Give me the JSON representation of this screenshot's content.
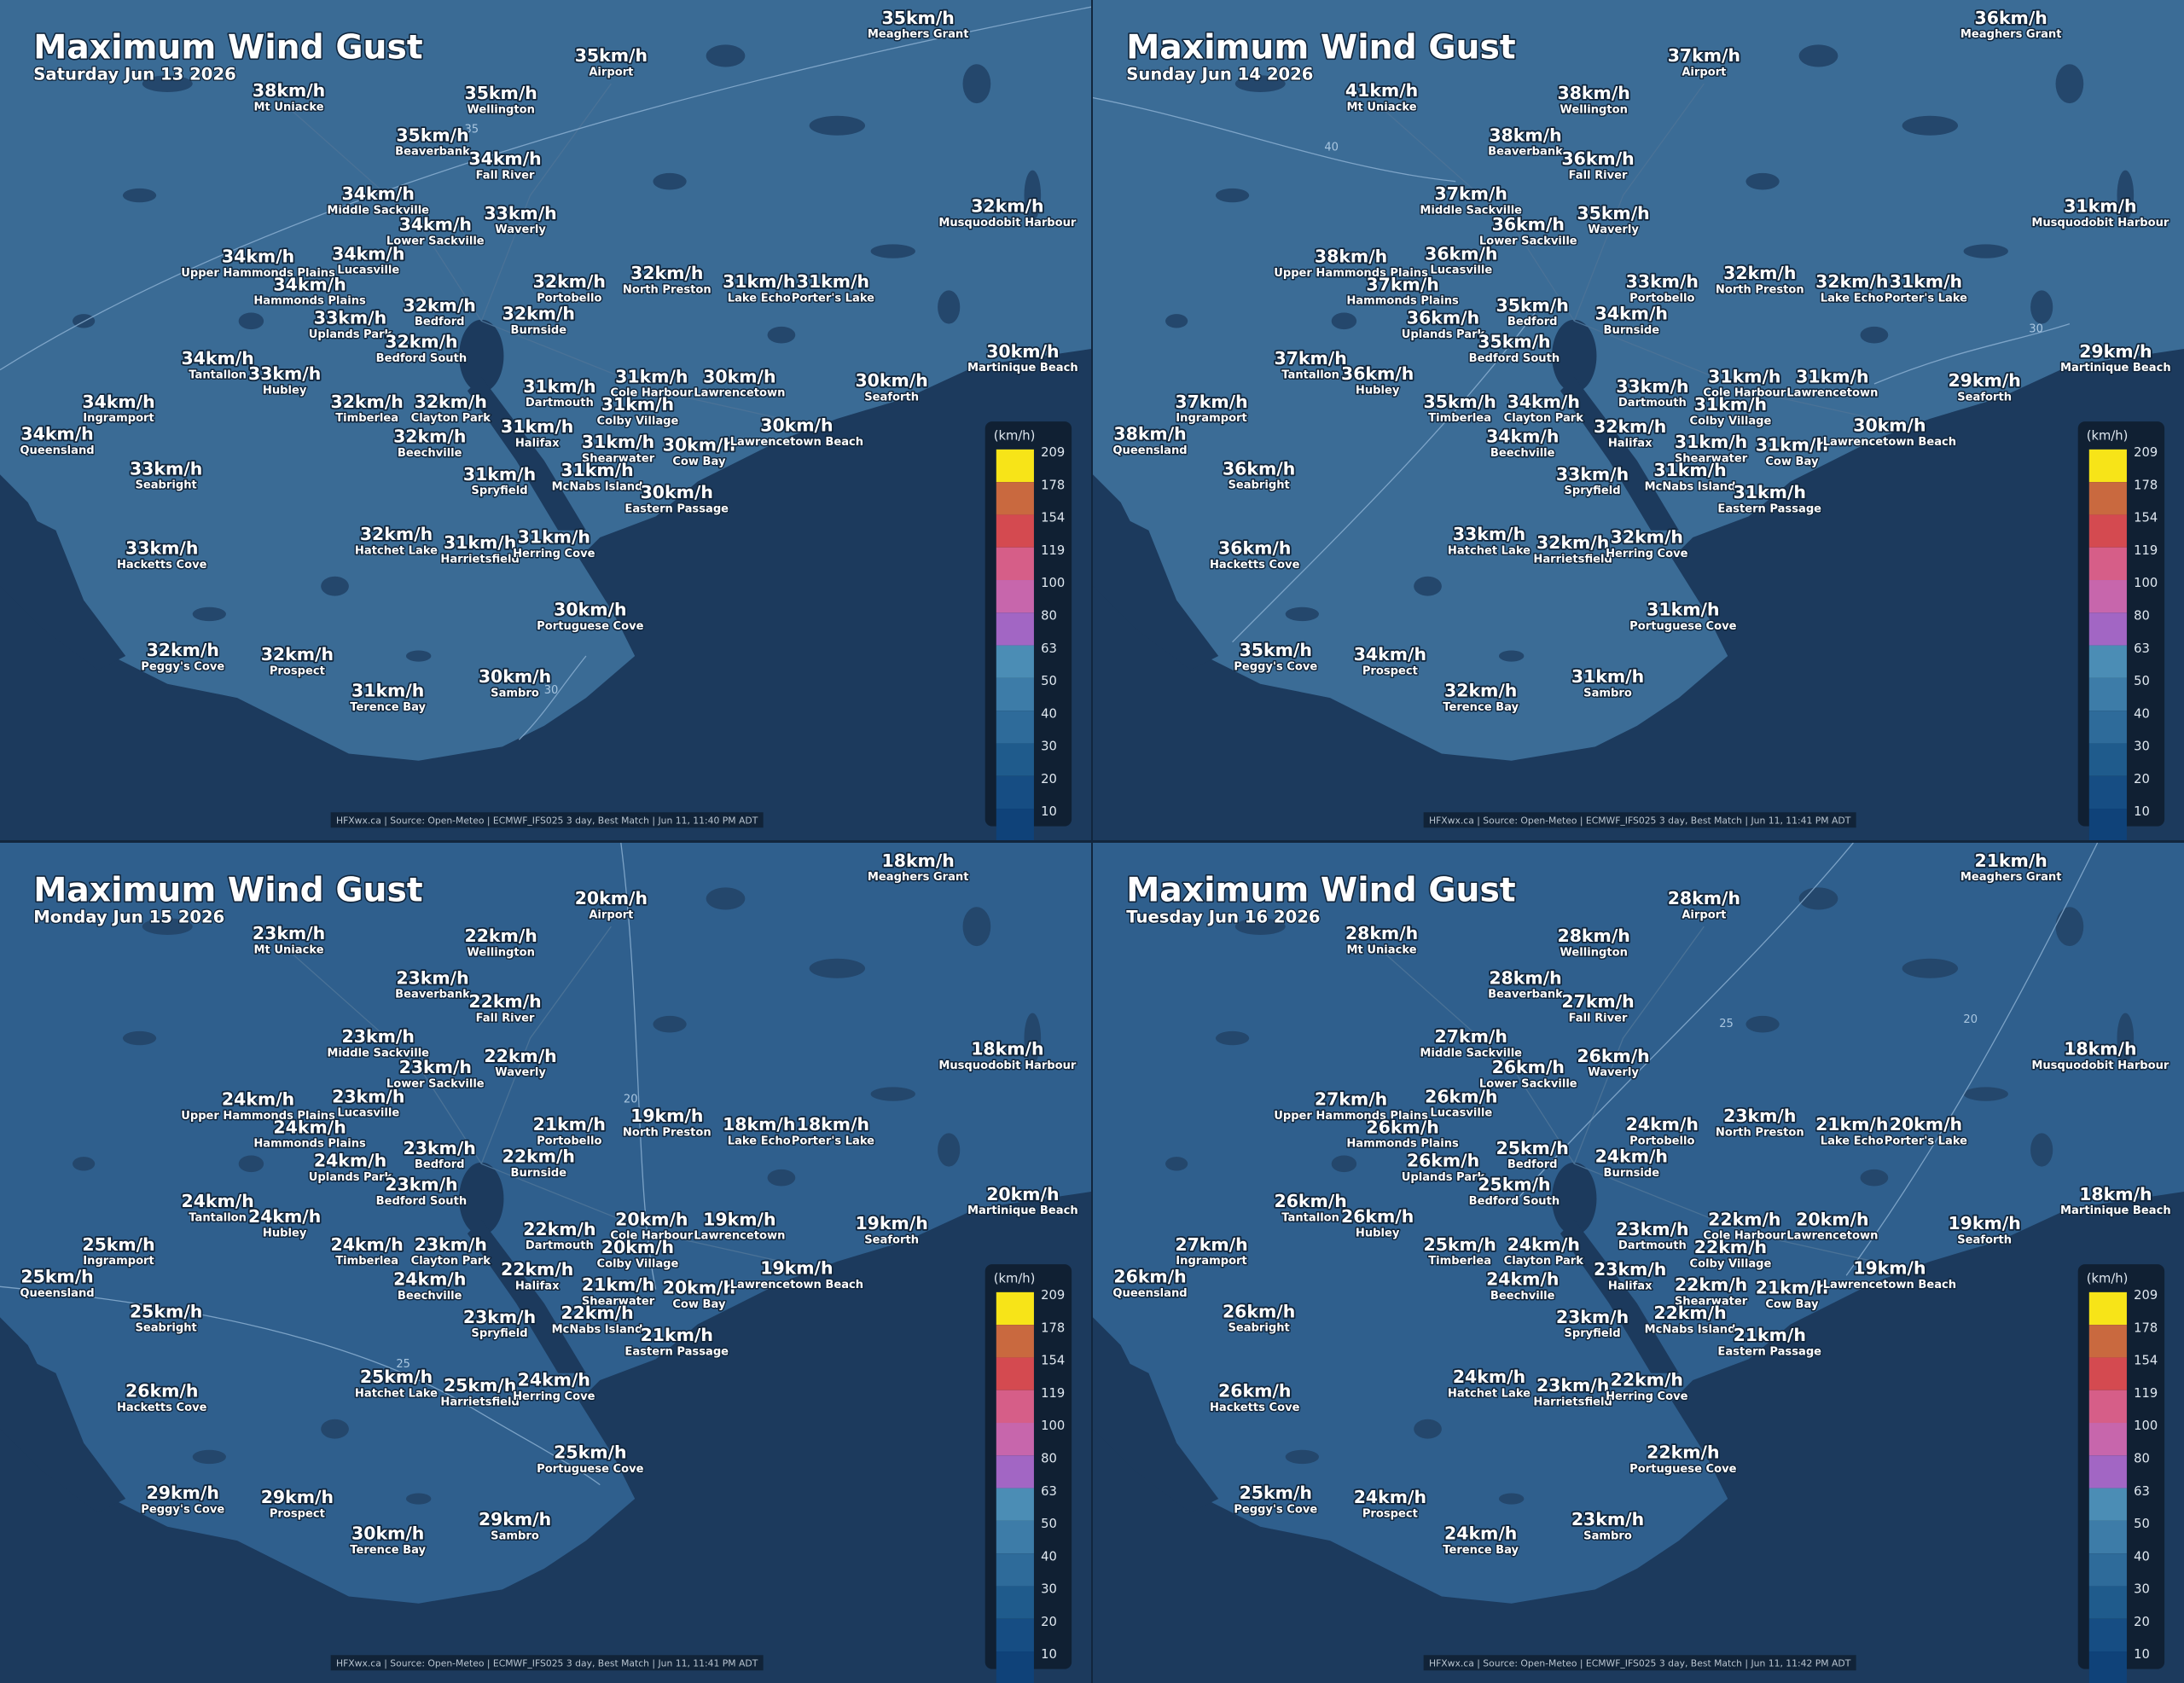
{
  "places": [
    "Meaghers Grant",
    "Airport",
    "Mt Uniacke",
    "Wellington",
    "Beaverbank",
    "Fall River",
    "Musquodobit Harbour",
    "Middle Sackville",
    "Lower Sackville",
    "Waverly",
    "Upper Hammonds Plains",
    "Lucasville",
    "Hammonds Plains",
    "Portobello",
    "North Preston",
    "Lake Echo",
    "Porter's Lake",
    "Bedford",
    "Uplands Park",
    "Burnside",
    "Bedford South",
    "Martinique Beach",
    "Tantallon",
    "Hubley",
    "Cole Harbour",
    "Lawrencetown",
    "Seaforth",
    "Ingramport",
    "Timberlea",
    "Clayton Park",
    "Dartmouth",
    "Colby Village",
    "Queensland",
    "Halifax",
    "Shearwater",
    "Beechville",
    "Cow Bay",
    "Lawrencetown Beach",
    "McNabs Island",
    "Seabright",
    "Spryfield",
    "Eastern Passage",
    "Hatchet Lake",
    "Harrietsfield",
    "Herring Cove",
    "Hacketts Cove",
    "Portuguese Cove",
    "Peggy's Cove",
    "Prospect",
    "Terence Bay",
    "Sambro"
  ],
  "legend": {
    "unit": "(km/h)",
    "ticks": [
      209,
      178,
      154,
      119,
      100,
      80,
      63,
      50,
      40,
      30,
      20,
      10
    ],
    "colors": [
      "#f7e418",
      "#c9693f",
      "#d44a50",
      "#d65e88",
      "#c766ac",
      "#a266c4",
      "#4b8db5",
      "#3d7ca8",
      "#2e6b9a",
      "#1f5b8c",
      "#164d83",
      "#0f4279"
    ]
  },
  "panels": [
    {
      "title": "Maximum Wind Gust",
      "date": "Saturday Jun 13 2026",
      "footer": "HFXwx.ca | Source: Open-Meteo | ECMWF_IFS025 3 day, Best Match | Jun 11, 11:40 PM ADT",
      "contours": [
        "35",
        "30"
      ],
      "gusts": [
        "35km/h",
        "35km/h",
        "38km/h",
        "35km/h",
        "35km/h",
        "34km/h",
        "32km/h",
        "34km/h",
        "34km/h",
        "33km/h",
        "34km/h",
        "34km/h",
        "34km/h",
        "32km/h",
        "32km/h",
        "31km/h",
        "31km/h",
        "32km/h",
        "33km/h",
        "32km/h",
        "32km/h",
        "30km/h",
        "34km/h",
        "33km/h",
        "31km/h",
        "30km/h",
        "30km/h",
        "34km/h",
        "32km/h",
        "32km/h",
        "31km/h",
        "31km/h",
        "34km/h",
        "31km/h",
        "31km/h",
        "32km/h",
        "30km/h",
        "30km/h",
        "31km/h",
        "33km/h",
        "31km/h",
        "30km/h",
        "32km/h",
        "31km/h",
        "31km/h",
        "33km/h",
        "30km/h",
        "32km/h",
        "32km/h",
        "31km/h",
        "30km/h"
      ]
    },
    {
      "title": "Maximum Wind Gust",
      "date": "Sunday Jun 14 2026",
      "footer": "HFXwx.ca | Source: Open-Meteo | ECMWF_IFS025 3 day, Best Match | Jun 11, 11:41 PM ADT",
      "contours": [
        "40",
        "30"
      ],
      "gusts": [
        "36km/h",
        "37km/h",
        "41km/h",
        "38km/h",
        "38km/h",
        "36km/h",
        "31km/h",
        "37km/h",
        "36km/h",
        "35km/h",
        "38km/h",
        "36km/h",
        "37km/h",
        "33km/h",
        "32km/h",
        "32km/h",
        "31km/h",
        "35km/h",
        "36km/h",
        "34km/h",
        "35km/h",
        "29km/h",
        "37km/h",
        "36km/h",
        "31km/h",
        "31km/h",
        "29km/h",
        "37km/h",
        "35km/h",
        "34km/h",
        "33km/h",
        "31km/h",
        "38km/h",
        "32km/h",
        "31km/h",
        "34km/h",
        "31km/h",
        "30km/h",
        "31km/h",
        "36km/h",
        "33km/h",
        "31km/h",
        "33km/h",
        "32km/h",
        "32km/h",
        "36km/h",
        "31km/h",
        "35km/h",
        "34km/h",
        "32km/h",
        "31km/h"
      ]
    },
    {
      "title": "Maximum Wind Gust",
      "date": "Monday Jun 15 2026",
      "footer": "HFXwx.ca | Source: Open-Meteo | ECMWF_IFS025 3 day, Best Match | Jun 11, 11:41 PM ADT",
      "contours": [
        "20",
        "25"
      ],
      "gusts": [
        "18km/h",
        "20km/h",
        "23km/h",
        "22km/h",
        "23km/h",
        "22km/h",
        "18km/h",
        "23km/h",
        "23km/h",
        "22km/h",
        "24km/h",
        "23km/h",
        "24km/h",
        "21km/h",
        "19km/h",
        "18km/h",
        "18km/h",
        "23km/h",
        "24km/h",
        "22km/h",
        "23km/h",
        "20km/h",
        "24km/h",
        "24km/h",
        "20km/h",
        "19km/h",
        "19km/h",
        "25km/h",
        "24km/h",
        "23km/h",
        "22km/h",
        "20km/h",
        "25km/h",
        "22km/h",
        "21km/h",
        "24km/h",
        "20km/h",
        "19km/h",
        "22km/h",
        "25km/h",
        "23km/h",
        "21km/h",
        "25km/h",
        "25km/h",
        "24km/h",
        "26km/h",
        "25km/h",
        "29km/h",
        "29km/h",
        "30km/h",
        "29km/h"
      ]
    },
    {
      "title": "Maximum Wind Gust",
      "date": "Tuesday Jun 16 2026",
      "footer": "HFXwx.ca | Source: Open-Meteo | ECMWF_IFS025 3 day, Best Match | Jun 11, 11:42 PM ADT",
      "contours": [
        "25",
        "20"
      ],
      "gusts": [
        "21km/h",
        "28km/h",
        "28km/h",
        "28km/h",
        "28km/h",
        "27km/h",
        "18km/h",
        "27km/h",
        "26km/h",
        "26km/h",
        "27km/h",
        "26km/h",
        "26km/h",
        "24km/h",
        "23km/h",
        "21km/h",
        "20km/h",
        "25km/h",
        "26km/h",
        "24km/h",
        "25km/h",
        "18km/h",
        "26km/h",
        "26km/h",
        "22km/h",
        "20km/h",
        "19km/h",
        "27km/h",
        "25km/h",
        "24km/h",
        "23km/h",
        "22km/h",
        "26km/h",
        "23km/h",
        "22km/h",
        "24km/h",
        "21km/h",
        "19km/h",
        "22km/h",
        "26km/h",
        "23km/h",
        "21km/h",
        "24km/h",
        "23km/h",
        "22km/h",
        "26km/h",
        "22km/h",
        "25km/h",
        "24km/h",
        "24km/h",
        "23km/h"
      ]
    }
  ]
}
